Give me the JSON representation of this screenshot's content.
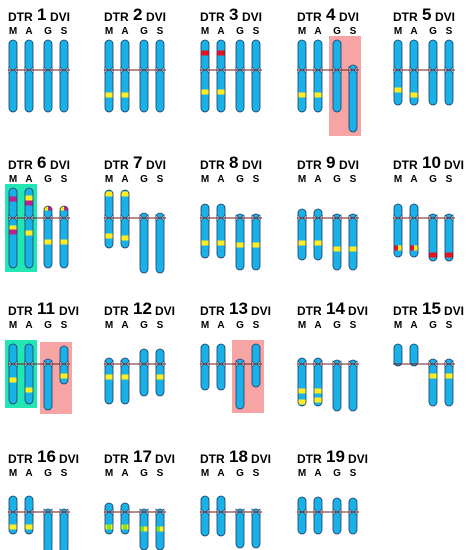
{
  "labels": {
    "dtr": "DTR",
    "dvi": "DVI",
    "cols": [
      "M",
      "A",
      "G",
      "S"
    ]
  },
  "colors": {
    "chromosome": "#1ab0e8",
    "chromosome_outline": "#1f3b66",
    "yellow_band": "#ffee22",
    "red_band": "#e8111b",
    "green_band": "#7ee81f",
    "magenta_band": "#c0208b",
    "highlight_pink": "#f7a4a4",
    "highlight_teal": "#22e6b4",
    "centromere_line": "#6b1f1f"
  },
  "panels": [
    {
      "number": "1",
      "chromosomes": [
        {
          "top": -30,
          "bottom": 42,
          "bands": []
        },
        {
          "top": -30,
          "bottom": 42,
          "bands": []
        },
        {
          "top": -30,
          "bottom": 42,
          "bands": []
        },
        {
          "top": -30,
          "bottom": 42,
          "bands": []
        }
      ]
    },
    {
      "number": "2",
      "chromosomes": [
        {
          "top": -30,
          "bottom": 42,
          "bands": [
            {
              "pos": 25,
              "color": "yellow"
            }
          ]
        },
        {
          "top": -30,
          "bottom": 42,
          "bands": [
            {
              "pos": 25,
              "color": "yellow"
            }
          ]
        },
        {
          "top": -30,
          "bottom": 42,
          "bands": []
        },
        {
          "top": -30,
          "bottom": 42,
          "bands": []
        }
      ]
    },
    {
      "number": "3",
      "chromosomes": [
        {
          "top": -30,
          "bottom": 42,
          "bands": [
            {
              "pos": -17,
              "color": "red"
            },
            {
              "pos": 22,
              "color": "yellow"
            }
          ]
        },
        {
          "top": -30,
          "bottom": 42,
          "bands": [
            {
              "pos": -17,
              "color": "red"
            },
            {
              "pos": 22,
              "color": "yellow"
            }
          ]
        },
        {
          "top": -30,
          "bottom": 42,
          "bands": []
        },
        {
          "top": -30,
          "bottom": 42,
          "bands": []
        }
      ]
    },
    {
      "number": "4",
      "highlight": {
        "type": "pink",
        "from": 2
      },
      "chromosomes": [
        {
          "top": -30,
          "bottom": 42,
          "bands": [
            {
              "pos": 25,
              "color": "yellow"
            }
          ]
        },
        {
          "top": -30,
          "bottom": 42,
          "bands": [
            {
              "pos": 25,
              "color": "yellow"
            }
          ]
        },
        {
          "top": -30,
          "bottom": 42,
          "bands": []
        },
        {
          "top": -5,
          "bottom": 62,
          "bands": []
        }
      ]
    },
    {
      "number": "5",
      "chromosomes": [
        {
          "top": -30,
          "bottom": 35,
          "bands": [
            {
              "pos": 20,
              "color": "yellow"
            }
          ]
        },
        {
          "top": -30,
          "bottom": 35,
          "bands": [
            {
              "pos": 25,
              "color": "yellow"
            }
          ]
        },
        {
          "top": -30,
          "bottom": 35,
          "bands": []
        },
        {
          "top": -30,
          "bottom": 35,
          "bands": []
        }
      ]
    },
    {
      "number": "6",
      "highlight": {
        "type": "teal",
        "to": 1
      },
      "chromosomes": [
        {
          "top": -30,
          "bottom": 50,
          "bands": [
            {
              "pos": -19,
              "color": "magenta"
            },
            {
              "pos": 10,
              "color": "yellow"
            },
            {
              "pos": 14,
              "color": "magenta"
            }
          ]
        },
        {
          "top": -30,
          "bottom": 50,
          "bands": [
            {
              "pos": -20,
              "color": "yellow"
            },
            {
              "pos": -15,
              "color": "magenta"
            },
            {
              "pos": 15,
              "color": "yellow"
            }
          ]
        },
        {
          "top": -12,
          "bottom": 50,
          "bands": [
            {
              "pos": -10,
              "color": "yellow"
            },
            {
              "pos": -10,
              "color": "magenta",
              "half": "right"
            },
            {
              "pos": 24,
              "color": "yellow"
            }
          ]
        },
        {
          "top": -12,
          "bottom": 50,
          "bands": [
            {
              "pos": -10,
              "color": "yellow"
            },
            {
              "pos": -10,
              "color": "magenta",
              "half": "right"
            },
            {
              "pos": 24,
              "color": "yellow"
            }
          ]
        }
      ]
    },
    {
      "number": "7",
      "chromosomes": [
        {
          "top": -28,
          "bottom": 30,
          "bands": [
            {
              "pos": -24,
              "color": "yellow"
            },
            {
              "pos": 18,
              "color": "yellow"
            }
          ]
        },
        {
          "top": -28,
          "bottom": 30,
          "bands": [
            {
              "pos": -24,
              "color": "yellow"
            },
            {
              "pos": 20,
              "color": "yellow"
            }
          ]
        },
        {
          "top": -5,
          "bottom": 55,
          "bands": []
        },
        {
          "top": -5,
          "bottom": 55,
          "bands": []
        }
      ]
    },
    {
      "number": "8",
      "chromosomes": [
        {
          "top": -14,
          "bottom": 40,
          "bands": [
            {
              "pos": 25,
              "color": "yellow"
            }
          ]
        },
        {
          "top": -14,
          "bottom": 40,
          "bands": [
            {
              "pos": 25,
              "color": "yellow"
            }
          ]
        },
        {
          "top": -4,
          "bottom": 52,
          "bands": [
            {
              "pos": 27,
              "color": "yellow"
            }
          ]
        },
        {
          "top": -4,
          "bottom": 52,
          "bands": [
            {
              "pos": 27,
              "color": "yellow"
            }
          ]
        }
      ]
    },
    {
      "number": "9",
      "chromosomes": [
        {
          "top": -9,
          "bottom": 42,
          "bands": [
            {
              "pos": 25,
              "color": "yellow"
            }
          ]
        },
        {
          "top": -9,
          "bottom": 42,
          "bands": [
            {
              "pos": 25,
              "color": "yellow"
            }
          ]
        },
        {
          "top": -4,
          "bottom": 52,
          "bands": [
            {
              "pos": 31,
              "color": "yellow"
            }
          ]
        },
        {
          "top": -4,
          "bottom": 52,
          "bands": [
            {
              "pos": 31,
              "color": "yellow"
            }
          ]
        }
      ]
    },
    {
      "number": "10",
      "chromosomes": [
        {
          "top": -14,
          "bottom": 39,
          "bands": [
            {
              "pos": 30,
              "color": "red"
            },
            {
              "pos": 30,
              "color": "yellow",
              "half": "right"
            }
          ]
        },
        {
          "top": -14,
          "bottom": 39,
          "bands": [
            {
              "pos": 30,
              "color": "red"
            },
            {
              "pos": 30,
              "color": "yellow",
              "half": "right"
            }
          ]
        },
        {
          "top": -4,
          "bottom": 43,
          "bands": [
            {
              "pos": 37,
              "color": "red"
            }
          ]
        },
        {
          "top": -4,
          "bottom": 43,
          "bands": [
            {
              "pos": 37,
              "color": "red"
            }
          ]
        }
      ]
    },
    {
      "number": "11",
      "highlight": {
        "type": "both"
      },
      "chromosomes": [
        {
          "top": -20,
          "bottom": 40,
          "bands": [
            {
              "pos": 16,
              "color": "yellow"
            }
          ]
        },
        {
          "top": -20,
          "bottom": 40,
          "bands": [
            {
              "pos": 26,
              "color": "yellow"
            }
          ]
        },
        {
          "top": -5,
          "bottom": 46,
          "bands": []
        },
        {
          "top": -18,
          "bottom": 20,
          "bands": [
            {
              "pos": 12,
              "color": "yellow"
            }
          ]
        }
      ]
    },
    {
      "number": "12",
      "chromosomes": [
        {
          "top": -6,
          "bottom": 40,
          "bands": [
            {
              "pos": 13,
              "color": "yellow"
            }
          ]
        },
        {
          "top": -6,
          "bottom": 40,
          "bands": [
            {
              "pos": 13,
              "color": "yellow"
            }
          ]
        },
        {
          "top": -15,
          "bottom": 32,
          "bands": []
        },
        {
          "top": -15,
          "bottom": 32,
          "bands": [
            {
              "pos": 13,
              "color": "yellow"
            }
          ]
        }
      ]
    },
    {
      "number": "13",
      "highlight": {
        "type": "pink",
        "from": 2
      },
      "chromosomes": [
        {
          "top": -20,
          "bottom": 26,
          "bands": []
        },
        {
          "top": -20,
          "bottom": 26,
          "bands": []
        },
        {
          "top": -5,
          "bottom": 45,
          "bands": []
        },
        {
          "top": -20,
          "bottom": 23,
          "bands": []
        }
      ]
    },
    {
      "number": "14",
      "chromosomes": [
        {
          "top": -6,
          "bottom": 42,
          "bands": [
            {
              "pos": 27,
              "color": "yellow"
            },
            {
              "pos": 38,
              "color": "yellow"
            }
          ]
        },
        {
          "top": -6,
          "bottom": 42,
          "bands": [
            {
              "pos": 27,
              "color": "yellow"
            },
            {
              "pos": 36,
              "color": "yellow"
            }
          ]
        },
        {
          "top": -4,
          "bottom": 47,
          "bands": []
        },
        {
          "top": -4,
          "bottom": 47,
          "bands": []
        }
      ]
    },
    {
      "number": "15",
      "chromosomes": [
        {
          "top": -20,
          "bottom": 2,
          "bands": []
        },
        {
          "top": -20,
          "bottom": 2,
          "bands": []
        },
        {
          "top": -5,
          "bottom": 42,
          "bands": [
            {
              "pos": 12,
              "color": "yellow"
            }
          ]
        },
        {
          "top": -5,
          "bottom": 42,
          "bands": [
            {
              "pos": 12,
              "color": "yellow"
            }
          ]
        }
      ]
    },
    {
      "number": "16",
      "chromosomes": [
        {
          "top": -16,
          "bottom": 22,
          "bands": [
            {
              "pos": 15,
              "color": "yellow"
            }
          ]
        },
        {
          "top": -16,
          "bottom": 22,
          "bands": [
            {
              "pos": 15,
              "color": "yellow"
            }
          ]
        },
        {
          "top": -3,
          "bottom": 41,
          "bands": []
        },
        {
          "top": -3,
          "bottom": 41,
          "bands": []
        }
      ]
    },
    {
      "number": "17",
      "chromosomes": [
        {
          "top": -9,
          "bottom": 22,
          "bands": [
            {
              "pos": 15,
              "color": "yellow"
            },
            {
              "pos": 15,
              "color": "green",
              "half": "middle"
            }
          ]
        },
        {
          "top": -9,
          "bottom": 22,
          "bands": [
            {
              "pos": 15,
              "color": "yellow"
            },
            {
              "pos": 15,
              "color": "green",
              "half": "middle"
            }
          ]
        },
        {
          "top": -3,
          "bottom": 38,
          "bands": [
            {
              "pos": 17,
              "color": "green"
            },
            {
              "pos": 17,
              "color": "yellow",
              "half": "right"
            }
          ]
        },
        {
          "top": -3,
          "bottom": 38,
          "bands": [
            {
              "pos": 17,
              "color": "green"
            },
            {
              "pos": 17,
              "color": "yellow",
              "half": "right"
            }
          ]
        }
      ]
    },
    {
      "number": "18",
      "chromosomes": [
        {
          "top": -16,
          "bottom": 24,
          "bands": []
        },
        {
          "top": -16,
          "bottom": 24,
          "bands": []
        },
        {
          "top": -3,
          "bottom": 36,
          "bands": []
        },
        {
          "top": -3,
          "bottom": 36,
          "bands": []
        }
      ]
    },
    {
      "number": "19",
      "chromosomes": [
        {
          "top": -15,
          "bottom": 22,
          "bands": []
        },
        {
          "top": -15,
          "bottom": 22,
          "bands": []
        },
        {
          "top": -14,
          "bottom": 22,
          "bands": []
        },
        {
          "top": -14,
          "bottom": 22,
          "bands": []
        }
      ]
    }
  ]
}
